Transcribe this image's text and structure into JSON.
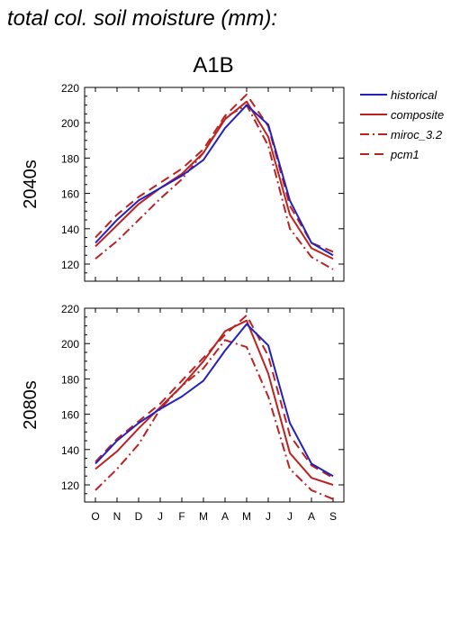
{
  "title": "total col. soil moisture (mm):",
  "chart_data": {
    "type": "line",
    "subtitle": "A1B",
    "categories": [
      "O",
      "N",
      "D",
      "J",
      "F",
      "M",
      "A",
      "M",
      "J",
      "J",
      "A",
      "S"
    ],
    "ylim": [
      110,
      220
    ],
    "yticks": [
      120,
      140,
      160,
      180,
      200,
      220
    ],
    "grid": false,
    "legend_position": "right",
    "legend": [
      {
        "label": "historical",
        "color": "#2222bb",
        "style": "solid"
      },
      {
        "label": "composite",
        "color": "#bb2222",
        "style": "solid"
      },
      {
        "label": "miroc_3.2",
        "color": "#bb2222",
        "style": "dashdot"
      },
      {
        "label": "pcm1",
        "color": "#bb2222",
        "style": "dashed"
      }
    ],
    "panels": [
      {
        "label": "2040s",
        "series": [
          {
            "name": "historical",
            "values": [
              132,
              145,
              156,
              163,
              170,
              179,
              197,
              210,
              199,
              156,
              132,
              125
            ]
          },
          {
            "name": "composite",
            "values": [
              130,
              142,
              154,
              163,
              171,
              183,
              202,
              212,
              192,
              148,
              129,
              123
            ]
          },
          {
            "name": "miroc_3.2",
            "values": [
              123,
              133,
              145,
              157,
              168,
              183,
              203,
              210,
              187,
              140,
              124,
              117
            ]
          },
          {
            "name": "pcm1",
            "values": [
              135,
              148,
              158,
              166,
              174,
              185,
              204,
              216,
              198,
              153,
              132,
              127
            ]
          }
        ]
      },
      {
        "label": "2080s",
        "series": [
          {
            "name": "historical",
            "values": [
              132,
              145,
              155,
              163,
              170,
              179,
              196,
              211,
              199,
              155,
              132,
              125
            ]
          },
          {
            "name": "composite",
            "values": [
              129,
              139,
              152,
              164,
              176,
              190,
              207,
              213,
              183,
              138,
              124,
              120
            ]
          },
          {
            "name": "miroc_3.2",
            "values": [
              117,
              129,
              143,
              163,
              176,
              186,
              202,
              198,
              170,
              129,
              117,
              112
            ]
          },
          {
            "name": "pcm1",
            "values": [
              133,
              146,
              156,
              166,
              179,
              192,
              205,
              216,
              193,
              148,
              131,
              124
            ]
          }
        ]
      }
    ]
  }
}
